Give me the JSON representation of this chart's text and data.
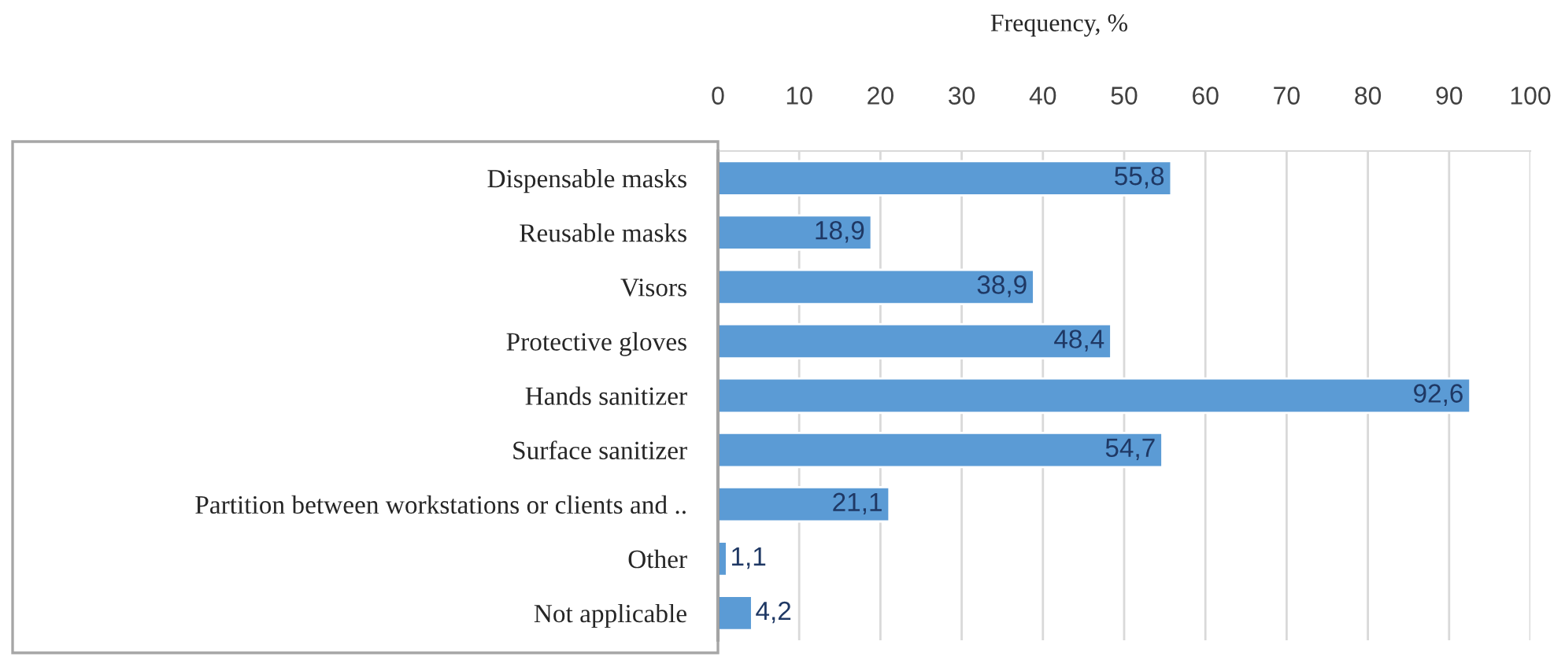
{
  "chart_data": {
    "type": "bar",
    "orientation": "horizontal",
    "xlabel": "Frequency, %",
    "categories": [
      "Dispensable masks",
      "Reusable masks",
      "Visors",
      "Protective gloves",
      "Hands sanitizer",
      "Surface sanitizer",
      "Partition between workstations or clients and ..",
      "Other",
      "Not applicable"
    ],
    "values": [
      55.8,
      18.9,
      38.9,
      48.4,
      92.6,
      54.7,
      21.1,
      1.1,
      4.2
    ],
    "value_labels": [
      "55,8",
      "18,9",
      "38,9",
      "48,4",
      "92,6",
      "54,7",
      "21,1",
      "1,1",
      "4,2"
    ],
    "color": "#5b9bd5",
    "xlim": [
      0,
      100
    ],
    "xticks": [
      0,
      10,
      20,
      30,
      40,
      50,
      60,
      70,
      80,
      90,
      100
    ],
    "grid": "x"
  }
}
